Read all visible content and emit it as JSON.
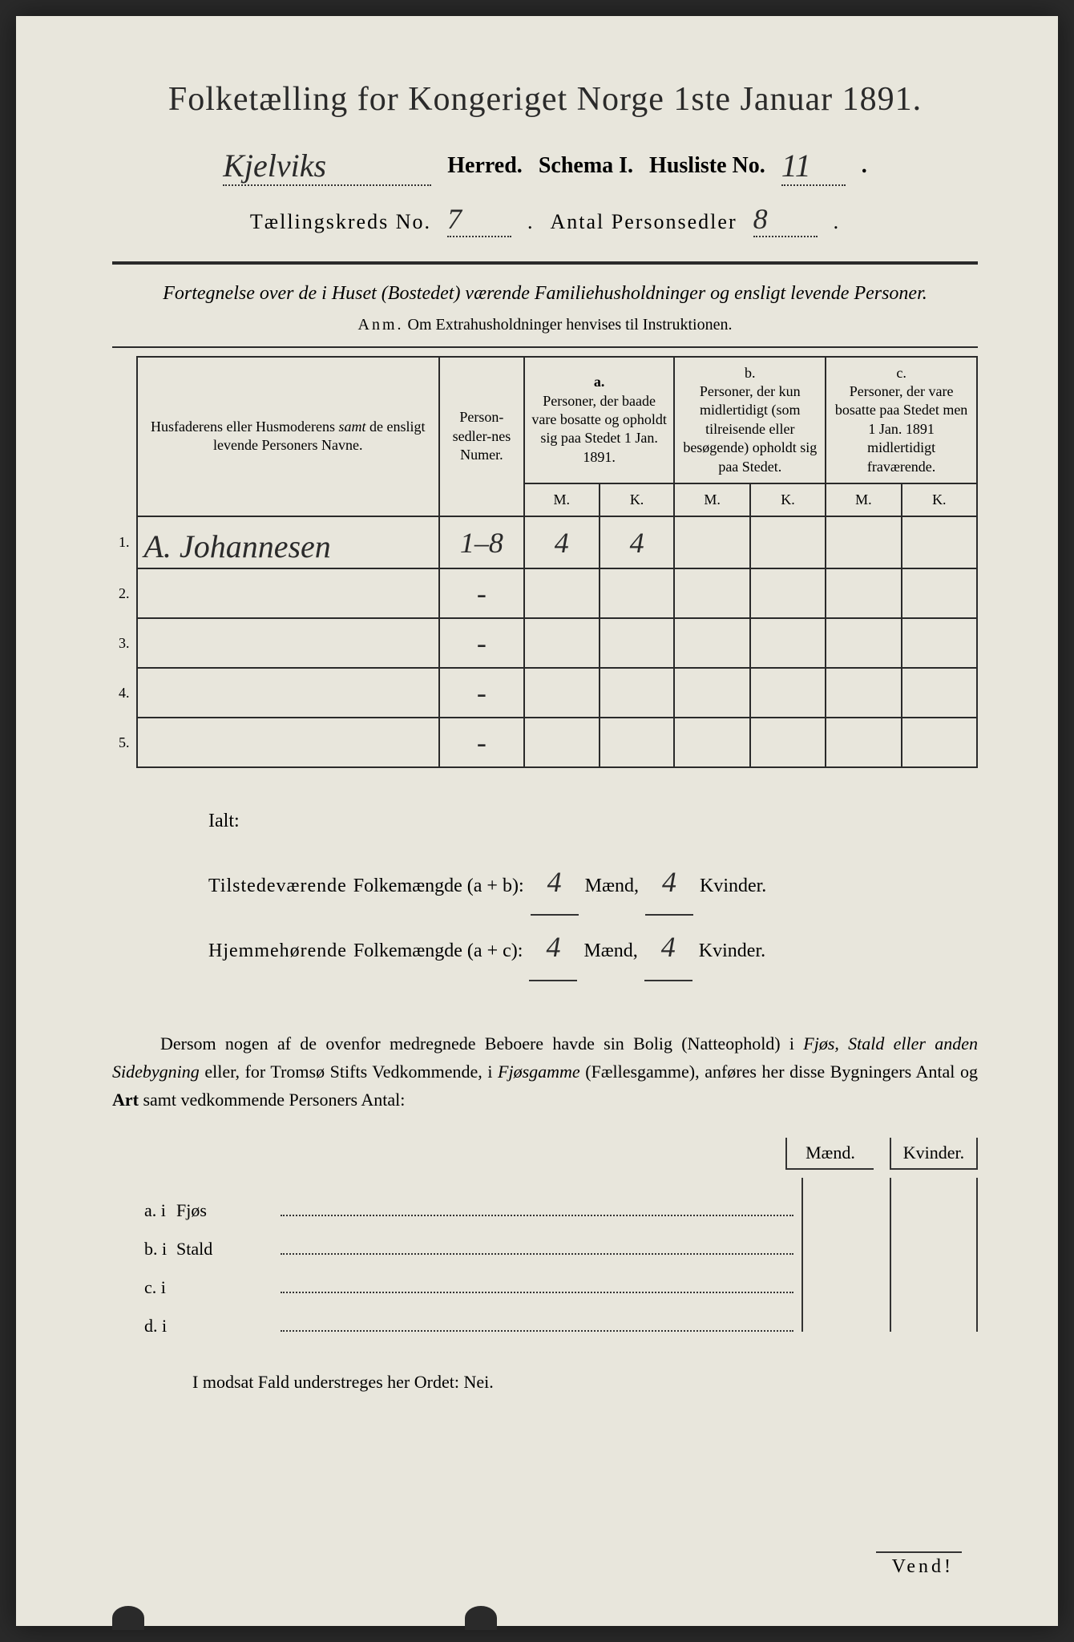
{
  "title": "Folketælling for Kongeriget Norge 1ste Januar 1891.",
  "header": {
    "herred_value": "Kjelviks",
    "herred_label": "Herred.",
    "schema_label": "Schema I.",
    "husliste_label": "Husliste No.",
    "husliste_value": "11",
    "kreds_label": "Tællingskreds No.",
    "kreds_value": "7",
    "antal_label": "Antal Personsedler",
    "antal_value": "8"
  },
  "fortegnelse": "Fortegnelse over de i Huset (Bostedet) værende Familiehusholdninger og ensligt levende Personer.",
  "anm": "Anm.  Om Extrahusholdninger henvises til Instruktionen.",
  "table": {
    "col1": "Husfaderens eller Husmoderens samt de ensligt levende Personers Navne.",
    "col2": "Person-sedler-nes Numer.",
    "col_a_label": "a.",
    "col_a": "Personer, der baade vare bosatte og opholdt sig paa Stedet 1 Jan. 1891.",
    "col_b_label": "b.",
    "col_b": "Personer, der kun midlertidigt (som tilreisende eller besøgende) opholdt sig paa Stedet.",
    "col_c_label": "c.",
    "col_c": "Personer, der vare bosatte paa Stedet men 1 Jan. 1891 midlertidigt fraværende.",
    "m": "M.",
    "k": "K.",
    "rows": [
      {
        "n": "1.",
        "name": "A. Johannesen",
        "numer": "1–8",
        "am": "4",
        "ak": "4",
        "bm": "",
        "bk": "",
        "cm": "",
        "ck": ""
      },
      {
        "n": "2.",
        "name": "",
        "numer": "-",
        "am": "",
        "ak": "",
        "bm": "",
        "bk": "",
        "cm": "",
        "ck": ""
      },
      {
        "n": "3.",
        "name": "",
        "numer": "-",
        "am": "",
        "ak": "",
        "bm": "",
        "bk": "",
        "cm": "",
        "ck": ""
      },
      {
        "n": "4.",
        "name": "",
        "numer": "-",
        "am": "",
        "ak": "",
        "bm": "",
        "bk": "",
        "cm": "",
        "ck": ""
      },
      {
        "n": "5.",
        "name": "",
        "numer": "-",
        "am": "",
        "ak": "",
        "bm": "",
        "bk": "",
        "cm": "",
        "ck": ""
      }
    ]
  },
  "ialt": {
    "label": "Ialt:",
    "line1_label": "Tilstedeværende Folkemængde (a + b):",
    "line2_label": "Hjemmehørende Folkemængde (a + c):",
    "maend": "Mænd,",
    "kvinder": "Kvinder.",
    "v1m": "4",
    "v1k": "4",
    "v2m": "4",
    "v2k": "4"
  },
  "dersom": "Dersom nogen af de ovenfor medregnede Beboere havde sin Bolig (Natteophold) i Fjøs, Stald eller anden Sidebygning eller, for Tromsø Stifts Vedkommende, i Fjøsgamme (Fællesgamme), anføres her disse Bygningers Antal og Art samt vedkommende Personers Antal:",
  "bygning": {
    "maend": "Mænd.",
    "kvinder": "Kvinder.",
    "rows": [
      {
        "label": "a.  i",
        "type": "Fjøs"
      },
      {
        "label": "b.  i",
        "type": "Stald"
      },
      {
        "label": "c.  i",
        "type": ""
      },
      {
        "label": "d.  i",
        "type": ""
      }
    ]
  },
  "modsat": "I modsat Fald understreges her Ordet: Nei.",
  "vend": "Vend!"
}
